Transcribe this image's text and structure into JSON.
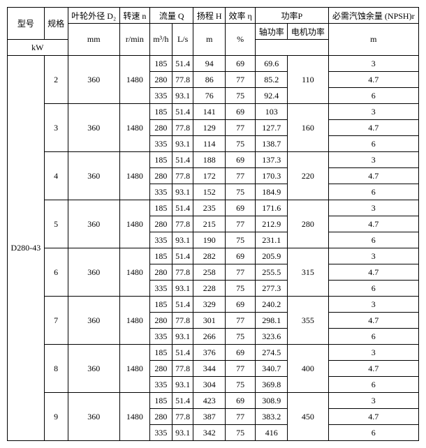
{
  "headers": {
    "model": "型号",
    "spec": "规格",
    "impeller": "叶轮外径\nD₂",
    "speed": "转速\nn",
    "flow": "流量\nQ",
    "head": "扬程\nH",
    "eff": "效率\nη",
    "power": "功率P",
    "shaft_power": "轴功率",
    "motor_power": "电机功率",
    "npsh": "必需汽蚀余量\n(NPSH)r",
    "units": {
      "mm": "mm",
      "rmin": "r/min",
      "m3h": "m³/h",
      "ls": "L/s",
      "m": "m",
      "pct": "%",
      "kw": "kW"
    }
  },
  "model": "D280-43",
  "groups": [
    {
      "spec": "2",
      "d2": "360",
      "n": "1480",
      "motor": "110",
      "rows": [
        [
          "185",
          "51.4",
          "94",
          "69",
          "69.6",
          "3"
        ],
        [
          "280",
          "77.8",
          "86",
          "77",
          "85.2",
          "4.7"
        ],
        [
          "335",
          "93.1",
          "76",
          "75",
          "92.4",
          "6"
        ]
      ]
    },
    {
      "spec": "3",
      "d2": "360",
      "n": "1480",
      "motor": "160",
      "rows": [
        [
          "185",
          "51.4",
          "141",
          "69",
          "103",
          "3"
        ],
        [
          "280",
          "77.8",
          "129",
          "77",
          "127.7",
          "4.7"
        ],
        [
          "335",
          "93.1",
          "114",
          "75",
          "138.7",
          "6"
        ]
      ]
    },
    {
      "spec": "4",
      "d2": "360",
      "n": "1480",
      "motor": "220",
      "rows": [
        [
          "185",
          "51.4",
          "188",
          "69",
          "137.3",
          "3"
        ],
        [
          "280",
          "77.8",
          "172",
          "77",
          "170.3",
          "4.7"
        ],
        [
          "335",
          "93.1",
          "152",
          "75",
          "184.9",
          "6"
        ]
      ]
    },
    {
      "spec": "5",
      "d2": "360",
      "n": "1480",
      "motor": "280",
      "rows": [
        [
          "185",
          "51.4",
          "235",
          "69",
          "171.6",
          "3"
        ],
        [
          "280",
          "77.8",
          "215",
          "77",
          "212.9",
          "4.7"
        ],
        [
          "335",
          "93.1",
          "190",
          "75",
          "231.1",
          "6"
        ]
      ]
    },
    {
      "spec": "6",
      "d2": "360",
      "n": "1480",
      "motor": "315",
      "rows": [
        [
          "185",
          "51.4",
          "282",
          "69",
          "205.9",
          "3"
        ],
        [
          "280",
          "77.8",
          "258",
          "77",
          "255.5",
          "4.7"
        ],
        [
          "335",
          "93.1",
          "228",
          "75",
          "277.3",
          "6"
        ]
      ]
    },
    {
      "spec": "7",
      "d2": "360",
      "n": "1480",
      "motor": "355",
      "rows": [
        [
          "185",
          "51.4",
          "329",
          "69",
          "240.2",
          "3"
        ],
        [
          "280",
          "77.8",
          "301",
          "77",
          "298.1",
          "4.7"
        ],
        [
          "335",
          "93.1",
          "266",
          "75",
          "323.6",
          "6"
        ]
      ]
    },
    {
      "spec": "8",
      "d2": "360",
      "n": "1480",
      "motor": "400",
      "rows": [
        [
          "185",
          "51.4",
          "376",
          "69",
          "274.5",
          "3"
        ],
        [
          "280",
          "77.8",
          "344",
          "77",
          "340.7",
          "4.7"
        ],
        [
          "335",
          "93.1",
          "304",
          "75",
          "369.8",
          "6"
        ]
      ]
    },
    {
      "spec": "9",
      "d2": "360",
      "n": "1480",
      "motor": "450",
      "rows": [
        [
          "185",
          "51.4",
          "423",
          "69",
          "308.9",
          "3"
        ],
        [
          "280",
          "77.8",
          "387",
          "77",
          "383.2",
          "4.7"
        ],
        [
          "335",
          "93.1",
          "342",
          "75",
          "416",
          "6"
        ]
      ]
    }
  ]
}
